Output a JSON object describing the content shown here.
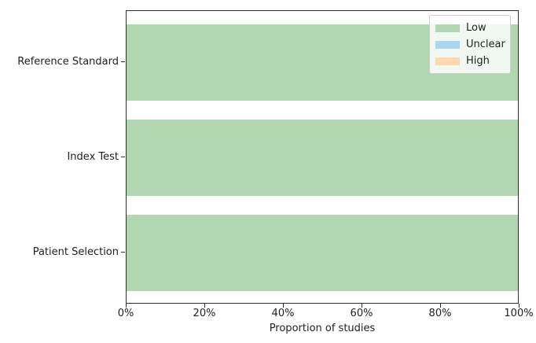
{
  "chart_data": {
    "type": "bar",
    "orientation": "horizontal",
    "stacked": true,
    "title": "",
    "xlabel": "Proportion of studies",
    "ylabel": "",
    "xlim": [
      0,
      100
    ],
    "grid": false,
    "categories": [
      "Reference Standard",
      "Index Test",
      "Patient Selection"
    ],
    "series": [
      {
        "name": "Low",
        "color": "#b0d7b0",
        "values": [
          100,
          100,
          100
        ]
      },
      {
        "name": "Unclear",
        "color": "#aad6f0",
        "values": [
          0,
          0,
          0
        ]
      },
      {
        "name": "High",
        "color": "#fcd8aa",
        "values": [
          0,
          0,
          0
        ]
      }
    ],
    "x_tick_labels": [
      "0%",
      "20%",
      "40%",
      "60%",
      "80%",
      "100%"
    ],
    "x_tick_values": [
      0,
      20,
      40,
      60,
      80,
      100
    ],
    "legend": {
      "position": "upper-right",
      "entries": [
        "Low",
        "Unclear",
        "High"
      ]
    },
    "colors": {
      "spine": "#2e2e2e",
      "text": "#1f1f1f",
      "legend_border": "#cccccc",
      "background": "#ffffff"
    }
  }
}
